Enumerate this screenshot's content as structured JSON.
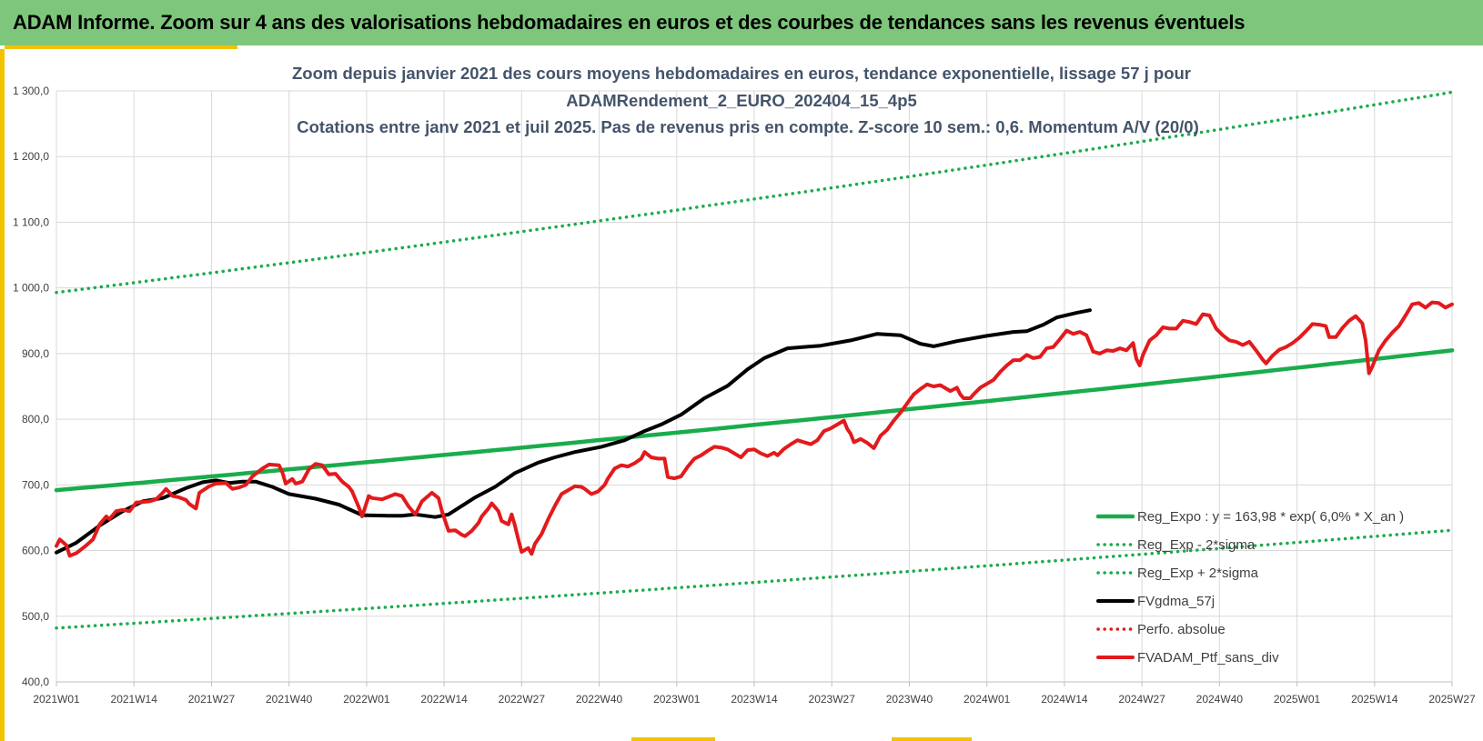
{
  "header": {
    "title": "ADAM Informe. Zoom sur 4 ans des valorisations hebdomadaires en euros et des courbes de tendances sans les revenus éventuels"
  },
  "chart_data": {
    "type": "line",
    "title_lines": [
      "Zoom depuis janvier 2021 des cours moyens hebdomadaires  en euros, tendance exponentielle, lissage 57 j pour",
      "ADAMRendement_2_EURO_202404_15_4p5",
      "Cotations  entre janv 2021 et juil 2025. Pas de revenus pris en compte. Z-score 10 sem.: 0,6. Momentum  A/V (20/0)"
    ],
    "ylim": [
      400,
      1300
    ],
    "y_ticks": [
      400,
      500,
      600,
      700,
      800,
      900,
      1000,
      1100,
      1200,
      1300
    ],
    "y_tick_labels": [
      "400,0",
      "500,0",
      "600,0",
      "700,0",
      "800,0",
      "900,0",
      "1 000,0",
      "1 100,0",
      "1 200,0",
      "1 300,0"
    ],
    "x_categories": [
      "2021W01",
      "2021W14",
      "2021W27",
      "2021W40",
      "2022W01",
      "2022W14",
      "2022W27",
      "2022W40",
      "2023W01",
      "2023W14",
      "2023W27",
      "2023W40",
      "2024W01",
      "2024W14",
      "2024W27",
      "2024W40",
      "2025W01",
      "2025W14",
      "2025W27"
    ],
    "x_range_weeks": [
      0,
      234
    ],
    "grid": true,
    "legend_position": "bottom-right",
    "series": [
      {
        "name": "Reg_Expo : y = 163,98 * exp( 6,0% *  X_an )",
        "color": "#1aac4c",
        "style": "solid",
        "width": 4.5,
        "kind": "exp",
        "start": 692,
        "end": 905
      },
      {
        "name": "Reg_Exp - 2*sigma",
        "color": "#1aac4c",
        "style": "dotted",
        "width": 3.5,
        "kind": "exp",
        "start": 482,
        "end": 631
      },
      {
        "name": "Reg_Exp + 2*sigma",
        "color": "#1aac4c",
        "style": "dotted",
        "width": 3.5,
        "kind": "exp",
        "start": 993,
        "end": 1298
      },
      {
        "name": "FVgdma_57j",
        "color": "#000000",
        "style": "solid",
        "width": 4,
        "kind": "points",
        "points": [
          [
            0,
            597
          ],
          [
            6,
            612
          ],
          [
            13,
            638
          ],
          [
            20,
            660
          ],
          [
            26,
            675
          ],
          [
            32,
            680
          ],
          [
            39,
            695
          ],
          [
            44,
            704
          ],
          [
            48,
            707
          ],
          [
            52,
            703
          ],
          [
            56,
            705
          ],
          [
            60,
            705
          ],
          [
            65,
            697
          ],
          [
            70,
            686
          ],
          [
            78,
            679
          ],
          [
            85,
            670
          ],
          [
            92,
            654
          ],
          [
            100,
            653
          ],
          [
            104,
            653
          ],
          [
            108,
            655
          ],
          [
            114,
            651
          ],
          [
            118,
            655
          ],
          [
            126,
            681
          ],
          [
            132,
            697
          ],
          [
            138,
            718
          ],
          [
            145,
            734
          ],
          [
            150,
            742
          ],
          [
            156,
            750
          ],
          [
            164,
            758
          ],
          [
            171,
            768
          ],
          [
            177,
            782
          ],
          [
            182,
            792
          ],
          [
            188,
            807
          ],
          [
            195,
            832
          ],
          [
            202,
            851
          ],
          [
            208,
            876
          ],
          [
            213,
            893
          ],
          [
            220,
            908
          ],
          [
            230,
            912
          ],
          [
            239,
            920
          ],
          [
            247,
            930
          ],
          [
            254,
            928
          ],
          [
            260,
            915
          ],
          [
            264,
            911
          ],
          [
            271,
            919
          ],
          [
            280,
            927
          ],
          [
            288,
            933
          ],
          [
            292,
            934
          ],
          [
            297,
            944
          ],
          [
            301,
            955
          ],
          [
            307,
            962
          ],
          [
            311,
            966
          ]
        ]
      },
      {
        "name": "Perfo. absolue",
        "color": "#e31a1c",
        "style": "dotted",
        "width": 3.5,
        "kind": "none"
      },
      {
        "name": "FVADAM_Ptf_sans_div",
        "color": "#e31a1c",
        "style": "solid",
        "width": 4,
        "kind": "points",
        "points": [
          [
            0,
            607
          ],
          [
            1,
            617
          ],
          [
            3,
            608
          ],
          [
            4,
            592
          ],
          [
            6,
            596
          ],
          [
            9,
            608
          ],
          [
            11,
            617
          ],
          [
            13,
            640
          ],
          [
            15,
            652
          ],
          [
            16,
            648
          ],
          [
            18,
            660
          ],
          [
            20,
            662
          ],
          [
            22,
            660
          ],
          [
            24,
            673
          ],
          [
            26,
            674
          ],
          [
            28,
            675
          ],
          [
            30,
            678
          ],
          [
            32,
            688
          ],
          [
            33,
            694
          ],
          [
            35,
            683
          ],
          [
            37,
            681
          ],
          [
            39,
            677
          ],
          [
            40,
            671
          ],
          [
            42,
            664
          ],
          [
            43,
            688
          ],
          [
            46,
            698
          ],
          [
            48,
            702
          ],
          [
            51,
            703
          ],
          [
            53,
            694
          ],
          [
            55,
            696
          ],
          [
            57,
            700
          ],
          [
            59,
            713
          ],
          [
            62,
            725
          ],
          [
            64,
            731
          ],
          [
            67,
            730
          ],
          [
            68,
            719
          ],
          [
            69,
            702
          ],
          [
            71,
            709
          ],
          [
            72,
            702
          ],
          [
            74,
            705
          ],
          [
            76,
            724
          ],
          [
            78,
            732
          ],
          [
            80,
            730
          ],
          [
            82,
            716
          ],
          [
            84,
            717
          ],
          [
            86,
            705
          ],
          [
            88,
            697
          ],
          [
            89,
            690
          ],
          [
            91,
            666
          ],
          [
            92,
            652
          ],
          [
            94,
            683
          ],
          [
            95,
            680
          ],
          [
            98,
            678
          ],
          [
            101,
            684
          ],
          [
            102,
            686
          ],
          [
            104,
            683
          ],
          [
            106,
            667
          ],
          [
            108,
            655
          ],
          [
            110,
            675
          ],
          [
            113,
            688
          ],
          [
            115,
            680
          ],
          [
            116,
            660
          ],
          [
            118,
            630
          ],
          [
            120,
            631
          ],
          [
            122,
            624
          ],
          [
            123,
            622
          ],
          [
            125,
            630
          ],
          [
            127,
            642
          ],
          [
            128,
            652
          ],
          [
            130,
            664
          ],
          [
            131,
            672
          ],
          [
            133,
            660
          ],
          [
            134,
            645
          ],
          [
            136,
            640
          ],
          [
            137,
            655
          ],
          [
            138,
            638
          ],
          [
            139,
            617
          ],
          [
            140,
            598
          ],
          [
            142,
            604
          ],
          [
            143,
            595
          ],
          [
            144,
            610
          ],
          [
            146,
            625
          ],
          [
            148,
            648
          ],
          [
            150,
            668
          ],
          [
            152,
            686
          ],
          [
            154,
            692
          ],
          [
            156,
            698
          ],
          [
            158,
            697
          ],
          [
            159,
            694
          ],
          [
            161,
            686
          ],
          [
            163,
            690
          ],
          [
            165,
            700
          ],
          [
            166,
            710
          ],
          [
            168,
            725
          ],
          [
            170,
            730
          ],
          [
            172,
            728
          ],
          [
            174,
            733
          ],
          [
            176,
            740
          ],
          [
            177,
            750
          ],
          [
            179,
            742
          ],
          [
            181,
            740
          ],
          [
            183,
            740
          ],
          [
            184,
            712
          ],
          [
            186,
            710
          ],
          [
            188,
            713
          ],
          [
            190,
            728
          ],
          [
            192,
            740
          ],
          [
            194,
            745
          ],
          [
            196,
            752
          ],
          [
            198,
            758
          ],
          [
            200,
            757
          ],
          [
            202,
            754
          ],
          [
            204,
            748
          ],
          [
            206,
            742
          ],
          [
            208,
            753
          ],
          [
            210,
            754
          ],
          [
            212,
            748
          ],
          [
            214,
            744
          ],
          [
            216,
            749
          ],
          [
            217,
            745
          ],
          [
            219,
            755
          ],
          [
            221,
            762
          ],
          [
            223,
            768
          ],
          [
            225,
            765
          ],
          [
            227,
            762
          ],
          [
            229,
            768
          ],
          [
            231,
            782
          ],
          [
            233,
            786
          ],
          [
            235,
            792
          ],
          [
            237,
            798
          ],
          [
            238,
            785
          ],
          [
            239,
            778
          ],
          [
            240,
            765
          ],
          [
            242,
            770
          ],
          [
            244,
            764
          ],
          [
            246,
            756
          ],
          [
            248,
            775
          ],
          [
            250,
            784
          ],
          [
            252,
            798
          ],
          [
            254,
            810
          ],
          [
            256,
            824
          ],
          [
            258,
            838
          ],
          [
            260,
            846
          ],
          [
            262,
            853
          ],
          [
            264,
            850
          ],
          [
            266,
            852
          ],
          [
            268,
            846
          ],
          [
            269,
            843
          ],
          [
            271,
            848
          ],
          [
            272,
            838
          ],
          [
            273,
            832
          ],
          [
            275,
            832
          ],
          [
            276,
            838
          ],
          [
            278,
            848
          ],
          [
            280,
            854
          ],
          [
            282,
            860
          ],
          [
            284,
            872
          ],
          [
            286,
            882
          ],
          [
            288,
            890
          ],
          [
            290,
            890
          ],
          [
            292,
            898
          ],
          [
            294,
            893
          ],
          [
            296,
            895
          ],
          [
            298,
            908
          ],
          [
            300,
            910
          ],
          [
            302,
            922
          ],
          [
            304,
            935
          ],
          [
            306,
            930
          ],
          [
            308,
            933
          ],
          [
            310,
            928
          ],
          [
            312,
            903
          ],
          [
            314,
            900
          ],
          [
            316,
            905
          ],
          [
            318,
            904
          ],
          [
            320,
            908
          ],
          [
            322,
            905
          ],
          [
            324,
            916
          ],
          [
            325,
            892
          ],
          [
            326,
            882
          ],
          [
            327,
            898
          ],
          [
            329,
            920
          ],
          [
            331,
            928
          ],
          [
            333,
            940
          ],
          [
            335,
            938
          ],
          [
            337,
            938
          ],
          [
            339,
            950
          ],
          [
            341,
            948
          ],
          [
            343,
            945
          ],
          [
            345,
            960
          ],
          [
            347,
            958
          ],
          [
            349,
            938
          ],
          [
            351,
            928
          ],
          [
            353,
            920
          ],
          [
            355,
            918
          ],
          [
            357,
            913
          ],
          [
            359,
            918
          ],
          [
            361,
            905
          ],
          [
            363,
            891
          ],
          [
            364,
            885
          ],
          [
            366,
            897
          ],
          [
            368,
            906
          ],
          [
            370,
            910
          ],
          [
            372,
            916
          ],
          [
            374,
            924
          ],
          [
            376,
            934
          ],
          [
            378,
            945
          ],
          [
            380,
            944
          ],
          [
            382,
            942
          ],
          [
            383,
            925
          ],
          [
            385,
            925
          ],
          [
            387,
            939
          ],
          [
            389,
            950
          ],
          [
            391,
            957
          ],
          [
            393,
            946
          ],
          [
            394,
            920
          ],
          [
            395,
            870
          ],
          [
            396,
            880
          ],
          [
            398,
            905
          ],
          [
            400,
            920
          ],
          [
            402,
            932
          ],
          [
            404,
            942
          ],
          [
            406,
            958
          ],
          [
            408,
            975
          ],
          [
            410,
            977
          ],
          [
            412,
            970
          ],
          [
            414,
            978
          ],
          [
            416,
            977
          ],
          [
            418,
            970
          ],
          [
            420,
            975
          ]
        ]
      }
    ]
  }
}
